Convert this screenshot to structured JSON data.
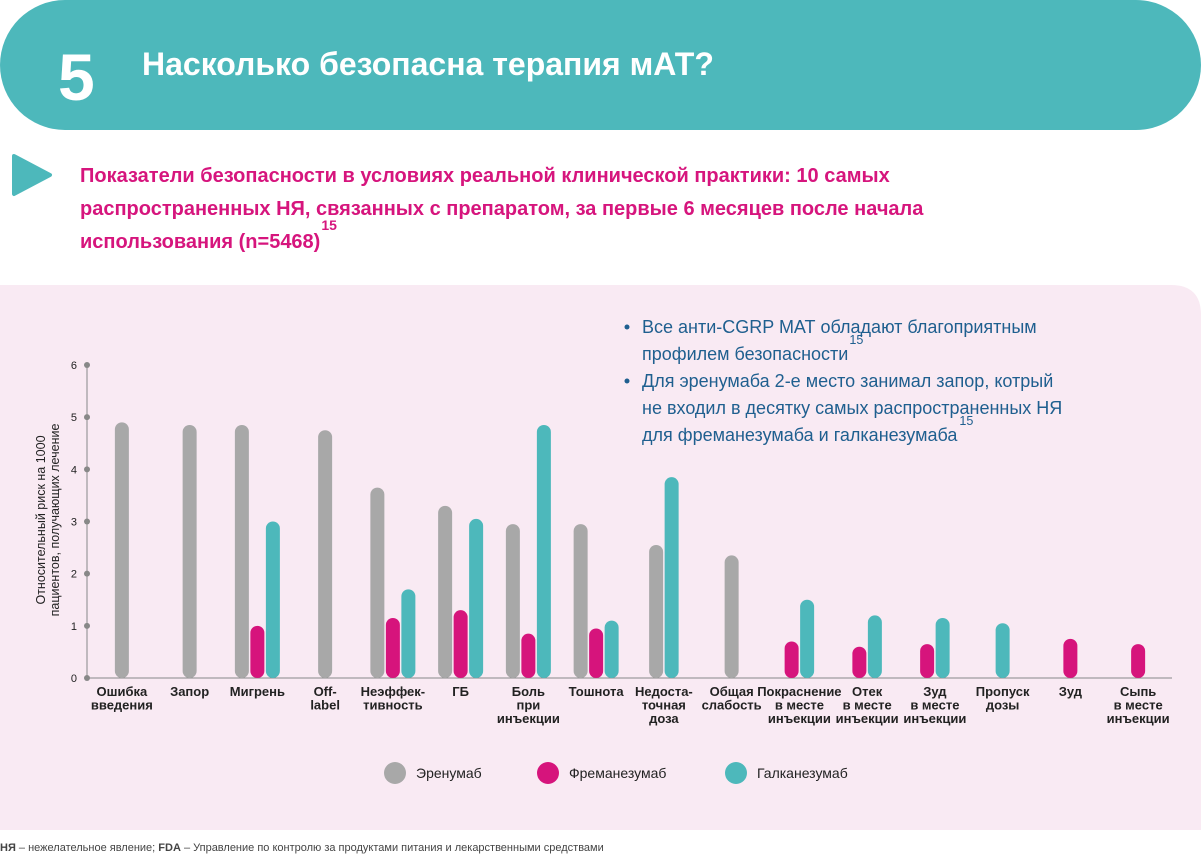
{
  "header": {
    "number": "5",
    "title": "Насколько безопасна терапия мАТ?"
  },
  "subtitle": {
    "lines": [
      "Показатели безопасности в условиях реальной клинической практики: 10 самых",
      "распространенных НЯ, связанных с препаратом, за первые 6 месяцев после начала",
      "использования  (n=5468)"
    ],
    "ref": "15"
  },
  "bullets": [
    {
      "lines": [
        "Все анти-CGRP МАТ обладают благоприятным",
        "профилем безопасности"
      ],
      "ref": "15"
    },
    {
      "lines": [
        "Для эренумаба 2-е место занимал запор, котрый",
        "не входил в десятку самых распространенных НЯ",
        "для фреманезумаба и галканезумаба"
      ],
      "ref": "15"
    }
  ],
  "chart_data": {
    "type": "bar",
    "ylabel": [
      "Относительный риск на 1000",
      "пациентов, получающих лечение"
    ],
    "categories": [
      [
        "Ошибка",
        "введения"
      ],
      [
        "Запор"
      ],
      [
        "Мигрень"
      ],
      [
        "Off-",
        "label"
      ],
      [
        "Неэффек-",
        "тивность"
      ],
      [
        "ГБ"
      ],
      [
        "Боль",
        "при",
        "инъекции"
      ],
      [
        "Тошнота"
      ],
      [
        "Недоста-",
        "точная",
        "доза"
      ],
      [
        "Общая",
        "слабость"
      ],
      [
        "Покраснение",
        "в месте",
        "инъекции"
      ],
      [
        "Отек",
        "в месте",
        "инъекции"
      ],
      [
        "Зуд",
        "в месте",
        "инъекции"
      ],
      [
        "Пропуск",
        "дозы"
      ],
      [
        "Зуд"
      ],
      [
        "Сыпь",
        "в месте",
        "инъекции"
      ]
    ],
    "series": [
      {
        "name": "Эренумаб",
        "color": "#a8a8a8",
        "values": [
          4.9,
          4.85,
          4.85,
          4.75,
          3.65,
          3.3,
          2.95,
          2.95,
          2.55,
          2.35,
          null,
          null,
          null,
          null,
          null,
          null
        ]
      },
      {
        "name": "Фреманезумаб",
        "color": "#d6147c",
        "values": [
          null,
          null,
          1.0,
          null,
          1.15,
          1.3,
          0.85,
          0.95,
          null,
          null,
          0.7,
          0.6,
          0.65,
          null,
          0.75,
          0.65
        ]
      },
      {
        "name": "Галканезумаб",
        "color": "#4db8bb",
        "values": [
          null,
          null,
          3.0,
          null,
          1.7,
          3.05,
          4.85,
          1.1,
          3.85,
          null,
          1.5,
          1.2,
          1.15,
          1.05,
          null,
          null
        ]
      }
    ],
    "ylim": [
      0,
      6
    ],
    "yticks": [
      0,
      1,
      2,
      3,
      4,
      5,
      6
    ]
  },
  "footnote": [
    {
      "text": "НЯ",
      "bold": true
    },
    {
      "text": " – нежелательное явление; ",
      "bold": false
    },
    {
      "text": "FDA",
      "bold": true
    },
    {
      "text": " – Управление по контролю за продуктами питания и лекарственными средствами",
      "bold": false
    }
  ]
}
